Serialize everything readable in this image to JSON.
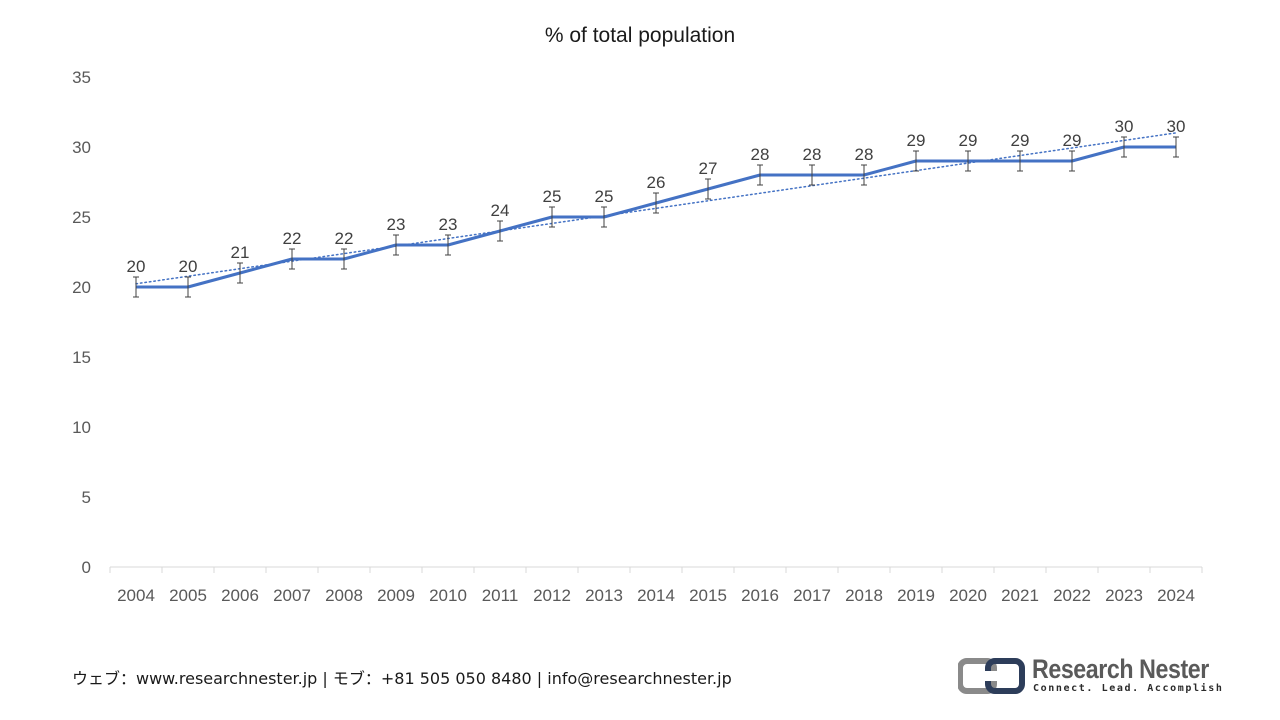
{
  "chart_data": {
    "type": "line",
    "title": "% of total population",
    "categories": [
      "2004",
      "2005",
      "2006",
      "2007",
      "2008",
      "2009",
      "2010",
      "2011",
      "2012",
      "2013",
      "2014",
      "2015",
      "2016",
      "2017",
      "2018",
      "2019",
      "2020",
      "2021",
      "2022",
      "2023",
      "2024"
    ],
    "series": [
      {
        "values": [
          20,
          20,
          21,
          22,
          22,
          23,
          23,
          24,
          25,
          25,
          26,
          27,
          28,
          28,
          28,
          29,
          29,
          29,
          29,
          30,
          30
        ],
        "color": "#4472c4",
        "error_bars": true,
        "trendline": "linear, dotted"
      }
    ],
    "ylim": [
      0,
      35
    ],
    "yticks": [
      0,
      5,
      10,
      15,
      20,
      25,
      30,
      35
    ],
    "grid": false,
    "legend": "none"
  },
  "footer": {
    "contact": "ウェブ：www.researchnester.jp | モブ：+81 505 050 8480 | info@researchnester.jp"
  },
  "logo": {
    "name": "Research Nester",
    "tagline": "Connect. Lead. Accomplish"
  }
}
